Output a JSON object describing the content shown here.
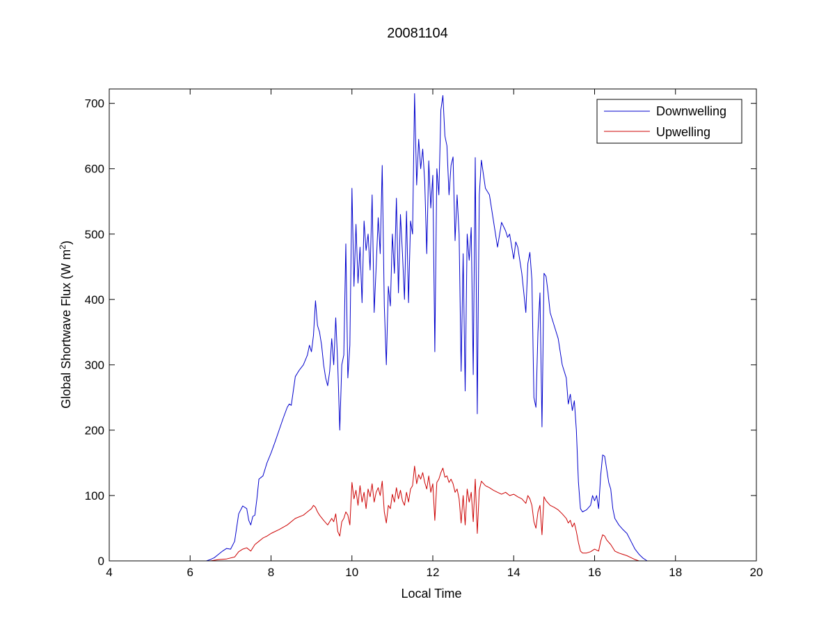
{
  "chart_data": {
    "type": "line",
    "title": "20081104",
    "xlabel": "Local Time",
    "ylabel_main": "Global Shortwave Flux (W m",
    "ylabel_sup": "2",
    "ylabel_close": ")",
    "xlim": [
      4,
      20
    ],
    "ylim": [
      0,
      722
    ],
    "xticks": [
      4,
      6,
      8,
      10,
      12,
      14,
      16,
      18,
      20
    ],
    "yticks": [
      0,
      100,
      200,
      300,
      400,
      500,
      600,
      700
    ],
    "grid": false,
    "legend_placement": "top-right",
    "series": [
      {
        "name": "Downwelling",
        "color": "#0000cc",
        "points": [
          [
            6.4,
            0
          ],
          [
            6.5,
            2
          ],
          [
            6.6,
            5
          ],
          [
            6.7,
            10
          ],
          [
            6.8,
            15
          ],
          [
            6.9,
            19
          ],
          [
            7.0,
            18
          ],
          [
            7.1,
            30
          ],
          [
            7.2,
            72
          ],
          [
            7.3,
            84
          ],
          [
            7.4,
            80
          ],
          [
            7.45,
            62
          ],
          [
            7.5,
            55
          ],
          [
            7.55,
            68
          ],
          [
            7.6,
            70
          ],
          [
            7.65,
            95
          ],
          [
            7.7,
            125
          ],
          [
            7.8,
            130
          ],
          [
            7.9,
            150
          ],
          [
            8.0,
            165
          ],
          [
            8.1,
            182
          ],
          [
            8.2,
            200
          ],
          [
            8.3,
            218
          ],
          [
            8.4,
            235
          ],
          [
            8.45,
            240
          ],
          [
            8.5,
            238
          ],
          [
            8.55,
            260
          ],
          [
            8.6,
            282
          ],
          [
            8.7,
            292
          ],
          [
            8.8,
            300
          ],
          [
            8.9,
            315
          ],
          [
            8.95,
            330
          ],
          [
            9.0,
            320
          ],
          [
            9.05,
            345
          ],
          [
            9.1,
            398
          ],
          [
            9.15,
            360
          ],
          [
            9.2,
            350
          ],
          [
            9.25,
            330
          ],
          [
            9.3,
            300
          ],
          [
            9.35,
            280
          ],
          [
            9.4,
            268
          ],
          [
            9.45,
            290
          ],
          [
            9.5,
            340
          ],
          [
            9.55,
            300
          ],
          [
            9.6,
            372
          ],
          [
            9.65,
            300
          ],
          [
            9.7,
            200
          ],
          [
            9.75,
            300
          ],
          [
            9.8,
            315
          ],
          [
            9.85,
            485
          ],
          [
            9.9,
            280
          ],
          [
            9.95,
            330
          ],
          [
            10.0,
            570
          ],
          [
            10.05,
            420
          ],
          [
            10.1,
            515
          ],
          [
            10.15,
            425
          ],
          [
            10.2,
            480
          ],
          [
            10.25,
            395
          ],
          [
            10.3,
            520
          ],
          [
            10.35,
            475
          ],
          [
            10.4,
            500
          ],
          [
            10.45,
            445
          ],
          [
            10.5,
            560
          ],
          [
            10.55,
            380
          ],
          [
            10.6,
            450
          ],
          [
            10.65,
            525
          ],
          [
            10.7,
            470
          ],
          [
            10.75,
            605
          ],
          [
            10.8,
            390
          ],
          [
            10.85,
            300
          ],
          [
            10.9,
            420
          ],
          [
            10.95,
            390
          ],
          [
            11.0,
            500
          ],
          [
            11.05,
            440
          ],
          [
            11.1,
            555
          ],
          [
            11.15,
            410
          ],
          [
            11.2,
            530
          ],
          [
            11.25,
            470
          ],
          [
            11.3,
            400
          ],
          [
            11.35,
            535
          ],
          [
            11.4,
            395
          ],
          [
            11.45,
            520
          ],
          [
            11.5,
            500
          ],
          [
            11.55,
            715
          ],
          [
            11.6,
            575
          ],
          [
            11.65,
            645
          ],
          [
            11.7,
            600
          ],
          [
            11.75,
            630
          ],
          [
            11.8,
            580
          ],
          [
            11.85,
            470
          ],
          [
            11.9,
            612
          ],
          [
            11.95,
            540
          ],
          [
            12.0,
            590
          ],
          [
            12.05,
            320
          ],
          [
            12.1,
            600
          ],
          [
            12.15,
            560
          ],
          [
            12.2,
            690
          ],
          [
            12.25,
            712
          ],
          [
            12.3,
            650
          ],
          [
            12.35,
            635
          ],
          [
            12.4,
            560
          ],
          [
            12.45,
            605
          ],
          [
            12.5,
            618
          ],
          [
            12.55,
            490
          ],
          [
            12.6,
            560
          ],
          [
            12.65,
            500
          ],
          [
            12.7,
            290
          ],
          [
            12.75,
            470
          ],
          [
            12.8,
            260
          ],
          [
            12.85,
            500
          ],
          [
            12.9,
            460
          ],
          [
            12.95,
            510
          ],
          [
            13.0,
            285
          ],
          [
            13.05,
            617
          ],
          [
            13.1,
            225
          ],
          [
            13.15,
            560
          ],
          [
            13.2,
            613
          ],
          [
            13.3,
            570
          ],
          [
            13.4,
            560
          ],
          [
            13.5,
            520
          ],
          [
            13.6,
            480
          ],
          [
            13.7,
            518
          ],
          [
            13.8,
            505
          ],
          [
            13.85,
            495
          ],
          [
            13.9,
            500
          ],
          [
            14.0,
            462
          ],
          [
            14.05,
            488
          ],
          [
            14.1,
            480
          ],
          [
            14.2,
            440
          ],
          [
            14.3,
            380
          ],
          [
            14.35,
            455
          ],
          [
            14.4,
            472
          ],
          [
            14.45,
            430
          ],
          [
            14.5,
            250
          ],
          [
            14.55,
            235
          ],
          [
            14.6,
            350
          ],
          [
            14.65,
            410
          ],
          [
            14.7,
            205
          ],
          [
            14.75,
            440
          ],
          [
            14.8,
            435
          ],
          [
            14.85,
            410
          ],
          [
            14.9,
            380
          ],
          [
            15.0,
            360
          ],
          [
            15.1,
            340
          ],
          [
            15.2,
            300
          ],
          [
            15.3,
            280
          ],
          [
            15.35,
            240
          ],
          [
            15.4,
            255
          ],
          [
            15.45,
            230
          ],
          [
            15.5,
            245
          ],
          [
            15.55,
            200
          ],
          [
            15.6,
            120
          ],
          [
            15.65,
            80
          ],
          [
            15.7,
            75
          ],
          [
            15.8,
            78
          ],
          [
            15.9,
            85
          ],
          [
            15.95,
            100
          ],
          [
            16.0,
            92
          ],
          [
            16.05,
            100
          ],
          [
            16.1,
            80
          ],
          [
            16.15,
            130
          ],
          [
            16.2,
            162
          ],
          [
            16.25,
            160
          ],
          [
            16.3,
            140
          ],
          [
            16.35,
            120
          ],
          [
            16.4,
            110
          ],
          [
            16.45,
            80
          ],
          [
            16.5,
            65
          ],
          [
            16.6,
            55
          ],
          [
            16.7,
            48
          ],
          [
            16.8,
            42
          ],
          [
            16.9,
            30
          ],
          [
            17.0,
            18
          ],
          [
            17.1,
            10
          ],
          [
            17.2,
            4
          ],
          [
            17.3,
            0
          ]
        ]
      },
      {
        "name": "Upwelling",
        "color": "#cc0000",
        "points": [
          [
            6.5,
            0
          ],
          [
            6.7,
            2
          ],
          [
            6.9,
            3
          ],
          [
            7.1,
            6
          ],
          [
            7.2,
            14
          ],
          [
            7.3,
            18
          ],
          [
            7.4,
            20
          ],
          [
            7.5,
            15
          ],
          [
            7.6,
            25
          ],
          [
            7.7,
            30
          ],
          [
            7.8,
            35
          ],
          [
            7.9,
            38
          ],
          [
            8.0,
            42
          ],
          [
            8.2,
            48
          ],
          [
            8.4,
            55
          ],
          [
            8.6,
            65
          ],
          [
            8.8,
            70
          ],
          [
            8.9,
            75
          ],
          [
            9.0,
            80
          ],
          [
            9.05,
            85
          ],
          [
            9.1,
            82
          ],
          [
            9.15,
            75
          ],
          [
            9.2,
            70
          ],
          [
            9.3,
            62
          ],
          [
            9.4,
            55
          ],
          [
            9.5,
            65
          ],
          [
            9.55,
            60
          ],
          [
            9.6,
            72
          ],
          [
            9.65,
            45
          ],
          [
            9.7,
            38
          ],
          [
            9.75,
            60
          ],
          [
            9.8,
            65
          ],
          [
            9.85,
            75
          ],
          [
            9.9,
            70
          ],
          [
            9.95,
            55
          ],
          [
            10.0,
            120
          ],
          [
            10.05,
            95
          ],
          [
            10.1,
            108
          ],
          [
            10.15,
            85
          ],
          [
            10.2,
            115
          ],
          [
            10.25,
            90
          ],
          [
            10.3,
            105
          ],
          [
            10.35,
            80
          ],
          [
            10.4,
            110
          ],
          [
            10.45,
            98
          ],
          [
            10.5,
            118
          ],
          [
            10.55,
            90
          ],
          [
            10.6,
            105
          ],
          [
            10.65,
            112
          ],
          [
            10.7,
            100
          ],
          [
            10.75,
            122
          ],
          [
            10.8,
            75
          ],
          [
            10.85,
            58
          ],
          [
            10.9,
            85
          ],
          [
            10.95,
            80
          ],
          [
            11.0,
            102
          ],
          [
            11.05,
            90
          ],
          [
            11.1,
            112
          ],
          [
            11.15,
            95
          ],
          [
            11.2,
            108
          ],
          [
            11.25,
            92
          ],
          [
            11.3,
            85
          ],
          [
            11.35,
            105
          ],
          [
            11.4,
            90
          ],
          [
            11.45,
            110
          ],
          [
            11.5,
            115
          ],
          [
            11.55,
            145
          ],
          [
            11.6,
            118
          ],
          [
            11.65,
            132
          ],
          [
            11.7,
            125
          ],
          [
            11.75,
            135
          ],
          [
            11.8,
            120
          ],
          [
            11.85,
            110
          ],
          [
            11.9,
            130
          ],
          [
            11.95,
            105
          ],
          [
            12.0,
            118
          ],
          [
            12.05,
            62
          ],
          [
            12.1,
            120
          ],
          [
            12.15,
            125
          ],
          [
            12.2,
            135
          ],
          [
            12.25,
            142
          ],
          [
            12.3,
            128
          ],
          [
            12.35,
            130
          ],
          [
            12.4,
            120
          ],
          [
            12.45,
            125
          ],
          [
            12.5,
            118
          ],
          [
            12.55,
            105
          ],
          [
            12.6,
            110
          ],
          [
            12.65,
            95
          ],
          [
            12.7,
            58
          ],
          [
            12.75,
            100
          ],
          [
            12.8,
            55
          ],
          [
            12.85,
            110
          ],
          [
            12.9,
            90
          ],
          [
            12.95,
            105
          ],
          [
            13.0,
            60
          ],
          [
            13.05,
            125
          ],
          [
            13.1,
            42
          ],
          [
            13.15,
            108
          ],
          [
            13.2,
            122
          ],
          [
            13.3,
            115
          ],
          [
            13.4,
            112
          ],
          [
            13.5,
            108
          ],
          [
            13.6,
            105
          ],
          [
            13.7,
            102
          ],
          [
            13.8,
            105
          ],
          [
            13.9,
            100
          ],
          [
            14.0,
            102
          ],
          [
            14.1,
            98
          ],
          [
            14.2,
            95
          ],
          [
            14.3,
            88
          ],
          [
            14.35,
            100
          ],
          [
            14.4,
            95
          ],
          [
            14.45,
            85
          ],
          [
            14.5,
            60
          ],
          [
            14.55,
            50
          ],
          [
            14.6,
            75
          ],
          [
            14.65,
            85
          ],
          [
            14.7,
            40
          ],
          [
            14.75,
            98
          ],
          [
            14.8,
            92
          ],
          [
            14.9,
            85
          ],
          [
            15.0,
            82
          ],
          [
            15.1,
            78
          ],
          [
            15.2,
            72
          ],
          [
            15.3,
            65
          ],
          [
            15.35,
            58
          ],
          [
            15.4,
            62
          ],
          [
            15.45,
            52
          ],
          [
            15.5,
            58
          ],
          [
            15.55,
            45
          ],
          [
            15.6,
            28
          ],
          [
            15.65,
            15
          ],
          [
            15.7,
            12
          ],
          [
            15.8,
            12
          ],
          [
            15.9,
            14
          ],
          [
            16.0,
            18
          ],
          [
            16.1,
            15
          ],
          [
            16.15,
            30
          ],
          [
            16.2,
            40
          ],
          [
            16.25,
            38
          ],
          [
            16.3,
            32
          ],
          [
            16.4,
            25
          ],
          [
            16.5,
            15
          ],
          [
            16.6,
            12
          ],
          [
            16.7,
            10
          ],
          [
            16.8,
            8
          ],
          [
            16.9,
            5
          ],
          [
            17.0,
            2
          ],
          [
            17.1,
            0
          ]
        ]
      }
    ]
  }
}
